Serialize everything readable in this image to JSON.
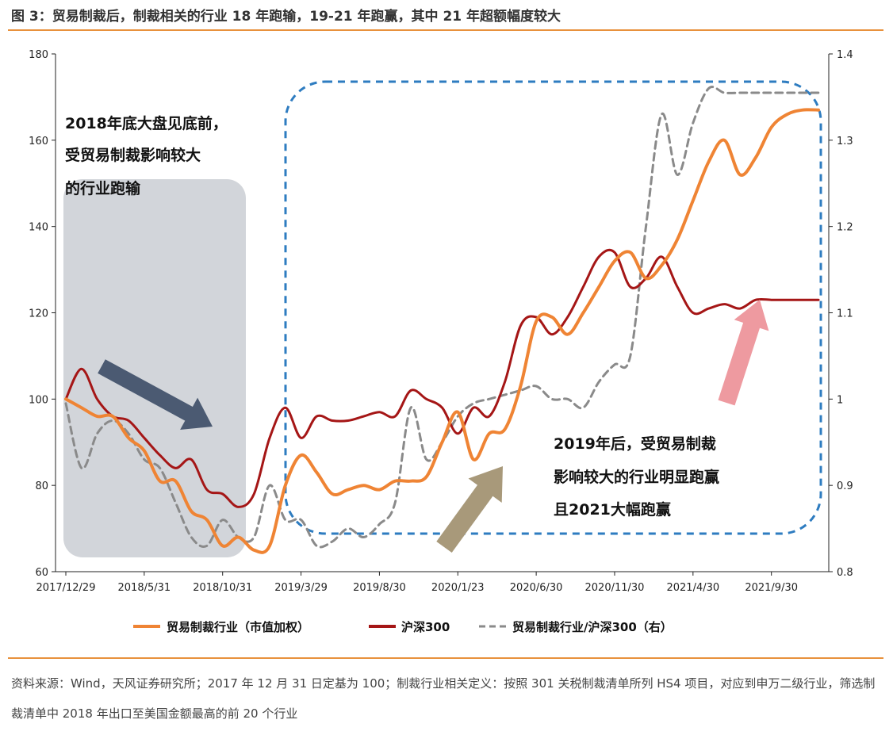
{
  "figure": {
    "title": "图 3：贸易制裁后，制裁相关的行业 18 年跑输，19-21 年跑赢，其中 21 年超额幅度较大",
    "source": "资料来源：Wind，天风证券研究所；2017 年 12 月 31 日定基为 100；制裁行业相关定义：按照 301 关税制裁清单所列 HS4 项目，对应到申万二级行业，筛选制裁清单中 2018 年出口至美国金额最高的前 20 个行业"
  },
  "colors": {
    "sanction": "#ef8434",
    "hs300": "#a51616",
    "ratio": "#8a8a8a",
    "accent": "#e8913c",
    "box_dashed": "#2e7cc0",
    "shade_gray": "#d2d5da",
    "arrow_down": "#4b5a72",
    "arrow_up_khaki": "#a8997a",
    "arrow_up_pink": "#ee9aa0"
  },
  "annotations": {
    "left": [
      "2018年底大盘见底前，",
      "受贸易制裁影响较大",
      "的行业跑输"
    ],
    "right": [
      "2019年后，受贸易制裁",
      "影响较大的行业明显跑赢",
      "且2021大幅跑赢"
    ]
  },
  "chart_data": {
    "type": "line",
    "title": "",
    "xlabel": "",
    "ylabel": "",
    "x_tick_labels": [
      "2017/12/29",
      "2018/5/31",
      "2018/10/31",
      "2019/3/29",
      "2019/8/30",
      "2020/1/23",
      "2020/6/30",
      "2020/11/30",
      "2021/4/30",
      "2021/9/30"
    ],
    "x_tick_positions": [
      0,
      5,
      10,
      15,
      20,
      25,
      30,
      35,
      40,
      45
    ],
    "x_range": [
      0,
      48
    ],
    "ylim": [
      60,
      180
    ],
    "y_ticks": [
      60,
      80,
      100,
      120,
      140,
      160,
      180
    ],
    "y2lim": [
      0.8,
      1.4
    ],
    "y2_ticks": [
      0.8,
      0.9,
      1,
      1.1,
      1.2,
      1.3,
      1.4
    ],
    "y2_tick_labels": [
      "0.8",
      "0.9",
      "1",
      "1.1",
      "1.2",
      "1.3",
      "1.4"
    ],
    "series": [
      {
        "name": "贸易制裁行业（市值加权）",
        "axis": "left",
        "style": "solid",
        "x": [
          0,
          1,
          2,
          3,
          4,
          5,
          6,
          7,
          8,
          9,
          10,
          11,
          12,
          13,
          14,
          15,
          16,
          17,
          18,
          19,
          20,
          21,
          22,
          23,
          24,
          25,
          26,
          27,
          28,
          29,
          30,
          31,
          32,
          33,
          34,
          35,
          36,
          37,
          38,
          39,
          40,
          41,
          42,
          43,
          44,
          45,
          46,
          47,
          48
        ],
        "values": [
          100,
          98,
          96,
          96,
          91,
          88,
          81,
          81,
          74,
          72,
          66,
          68,
          65,
          66,
          80,
          87,
          83,
          78,
          79,
          80,
          79,
          81,
          81,
          82,
          90,
          97,
          86,
          92,
          93,
          103,
          118,
          119,
          115,
          120,
          126,
          132,
          134,
          128,
          131,
          137,
          146,
          155,
          160,
          152,
          156,
          163,
          166,
          167,
          167
        ]
      },
      {
        "name": "沪深300",
        "axis": "left",
        "style": "solid",
        "x": [
          0,
          1,
          2,
          3,
          4,
          5,
          6,
          7,
          8,
          9,
          10,
          11,
          12,
          13,
          14,
          15,
          16,
          17,
          18,
          19,
          20,
          21,
          22,
          23,
          24,
          25,
          26,
          27,
          28,
          29,
          30,
          31,
          32,
          33,
          34,
          35,
          36,
          37,
          38,
          39,
          40,
          41,
          42,
          43,
          44,
          45,
          46,
          47,
          48
        ],
        "values": [
          100,
          107,
          100,
          96,
          95,
          91,
          87,
          84,
          86,
          79,
          78,
          75,
          78,
          91,
          98,
          91,
          96,
          95,
          95,
          96,
          97,
          96,
          102,
          100,
          98,
          92,
          98,
          96,
          104,
          117,
          119,
          115,
          119,
          126,
          133,
          134,
          126,
          128,
          133,
          126,
          120,
          121,
          122,
          121,
          123,
          123,
          123,
          123,
          123
        ]
      },
      {
        "name": "贸易制裁行业/沪深300（右）",
        "axis": "right",
        "style": "dashed",
        "x": [
          0,
          1,
          2,
          3,
          4,
          5,
          6,
          7,
          8,
          9,
          10,
          11,
          12,
          13,
          14,
          15,
          16,
          17,
          18,
          19,
          20,
          21,
          22,
          23,
          24,
          25,
          26,
          27,
          28,
          29,
          30,
          31,
          32,
          33,
          34,
          35,
          36,
          37,
          38,
          39,
          40,
          41,
          42,
          43,
          44,
          45,
          46,
          47,
          48
        ],
        "values": [
          0.995,
          0.92,
          0.96,
          0.975,
          0.96,
          0.93,
          0.92,
          0.88,
          0.84,
          0.83,
          0.86,
          0.84,
          0.84,
          0.9,
          0.86,
          0.86,
          0.83,
          0.835,
          0.85,
          0.84,
          0.855,
          0.88,
          0.99,
          0.93,
          0.95,
          0.98,
          0.995,
          1.0,
          1.005,
          1.01,
          1.015,
          1.0,
          1.0,
          0.99,
          1.02,
          1.04,
          1.05,
          1.2,
          1.33,
          1.26,
          1.32,
          1.36,
          1.355,
          1.355,
          1.355,
          1.355,
          1.355,
          1.355,
          1.355
        ]
      }
    ],
    "legend_position": "bottom-center"
  }
}
